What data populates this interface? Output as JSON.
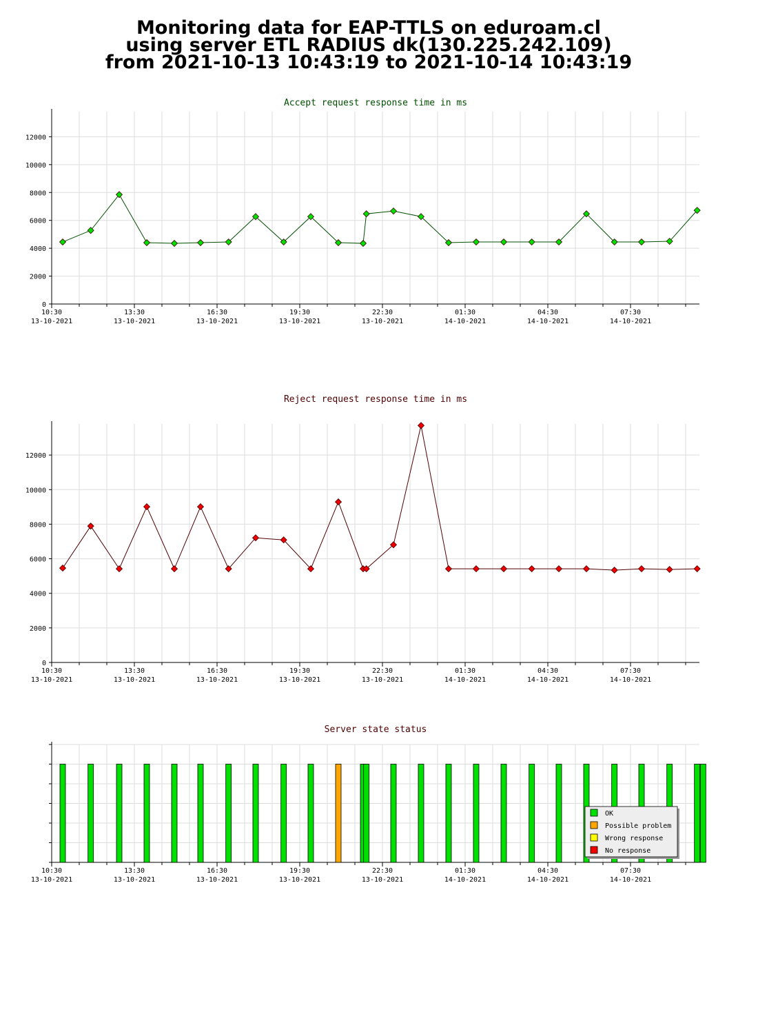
{
  "title": [
    "Monitoring data for EAP-TTLS on eduroam.cl",
    "using server ETL RADIUS dk(130.225.242.109)",
    "from 2021-10-13 10:43:19 to 2021-10-14 10:43:19"
  ],
  "chart_data": [
    {
      "type": "line",
      "title": "Accept request response time in ms",
      "title_color": "#005000",
      "x": [
        "2021-10-13T10:54",
        "2021-10-13T11:55",
        "2021-10-13T12:57",
        "2021-10-13T13:57",
        "2021-10-13T14:57",
        "2021-10-13T15:54",
        "2021-10-13T16:55",
        "2021-10-13T17:54",
        "2021-10-13T18:55",
        "2021-10-13T19:54",
        "2021-10-13T20:54",
        "2021-10-13T21:48",
        "2021-10-13T21:55",
        "2021-10-13T22:54",
        "2021-10-13T23:54",
        "2021-10-14T00:54",
        "2021-10-14T01:54",
        "2021-10-14T02:54",
        "2021-10-14T03:55",
        "2021-10-14T04:54",
        "2021-10-14T05:54",
        "2021-10-14T06:55",
        "2021-10-14T07:54",
        "2021-10-14T08:55",
        "2021-10-14T09:55"
      ],
      "series": [
        {
          "name": "Accept",
          "color": "#005000",
          "marker_color": "#00e000",
          "values": [
            4450,
            5280,
            7850,
            4400,
            4350,
            4400,
            4450,
            6270,
            4450,
            6270,
            4400,
            4350,
            6470,
            6670,
            6270,
            4400,
            4450,
            4450,
            4450,
            4450,
            6470,
            4450,
            4450,
            4500,
            6720
          ]
        }
      ],
      "xlim": [
        "2021-10-13T10:30",
        "2021-10-14T10:00"
      ],
      "xticks": [
        {
          "value": "2021-10-13T10:30",
          "label": "10:30\n13-10-2021"
        },
        {
          "value": "2021-10-13T13:30",
          "label": "13:30\n13-10-2021"
        },
        {
          "value": "2021-10-13T16:30",
          "label": "16:30\n13-10-2021"
        },
        {
          "value": "2021-10-13T19:30",
          "label": "19:30\n13-10-2021"
        },
        {
          "value": "2021-10-13T22:30",
          "label": "22:30\n13-10-2021"
        },
        {
          "value": "2021-10-14T01:30",
          "label": "01:30\n14-10-2021"
        },
        {
          "value": "2021-10-14T04:30",
          "label": "04:30\n14-10-2021"
        },
        {
          "value": "2021-10-14T07:30",
          "label": "07:30\n14-10-2021"
        }
      ],
      "xminorticks": [
        "2021-10-13T11:30",
        "2021-10-13T12:30",
        "2021-10-13T14:30",
        "2021-10-13T15:30",
        "2021-10-13T17:30",
        "2021-10-13T18:30",
        "2021-10-13T20:30",
        "2021-10-13T21:30",
        "2021-10-13T23:30",
        "2021-10-14T00:30",
        "2021-10-14T02:30",
        "2021-10-14T03:30",
        "2021-10-14T05:30",
        "2021-10-14T06:30",
        "2021-10-14T08:30",
        "2021-10-14T09:30"
      ],
      "ylim": [
        0,
        13800
      ],
      "yticks": [
        0,
        2000,
        4000,
        6000,
        8000,
        10000,
        12000
      ],
      "grid": true
    },
    {
      "type": "line",
      "title": "Reject request response time in ms",
      "title_color": "#500000",
      "x": [
        "2021-10-13T10:54",
        "2021-10-13T11:55",
        "2021-10-13T12:57",
        "2021-10-13T13:57",
        "2021-10-13T14:57",
        "2021-10-13T15:54",
        "2021-10-13T16:55",
        "2021-10-13T17:54",
        "2021-10-13T18:55",
        "2021-10-13T19:54",
        "2021-10-13T20:54",
        "2021-10-13T21:48",
        "2021-10-13T21:55",
        "2021-10-13T22:54",
        "2021-10-13T23:54",
        "2021-10-14T00:54",
        "2021-10-14T01:54",
        "2021-10-14T02:54",
        "2021-10-14T03:55",
        "2021-10-14T04:54",
        "2021-10-14T05:54",
        "2021-10-14T06:55",
        "2021-10-14T07:54",
        "2021-10-14T08:55",
        "2021-10-14T09:55"
      ],
      "series": [
        {
          "name": "Reject",
          "color": "#500000",
          "marker_color": "#ee0000",
          "values": [
            5460,
            7890,
            5420,
            9010,
            5420,
            9010,
            5420,
            7210,
            7090,
            5420,
            9290,
            5420,
            5420,
            6810,
            13710,
            5420,
            5420,
            5420,
            5420,
            5420,
            5420,
            5340,
            5420,
            5380,
            5420
          ]
        }
      ],
      "xlim": [
        "2021-10-13T10:30",
        "2021-10-14T10:00"
      ],
      "xticks": [
        {
          "value": "2021-10-13T10:30",
          "label": "10:30\n13-10-2021"
        },
        {
          "value": "2021-10-13T13:30",
          "label": "13:30\n13-10-2021"
        },
        {
          "value": "2021-10-13T16:30",
          "label": "16:30\n13-10-2021"
        },
        {
          "value": "2021-10-13T19:30",
          "label": "19:30\n13-10-2021"
        },
        {
          "value": "2021-10-13T22:30",
          "label": "22:30\n13-10-2021"
        },
        {
          "value": "2021-10-14T01:30",
          "label": "01:30\n14-10-2021"
        },
        {
          "value": "2021-10-14T04:30",
          "label": "04:30\n14-10-2021"
        },
        {
          "value": "2021-10-14T07:30",
          "label": "07:30\n14-10-2021"
        }
      ],
      "xminorticks": [
        "2021-10-13T11:30",
        "2021-10-13T12:30",
        "2021-10-13T14:30",
        "2021-10-13T15:30",
        "2021-10-13T17:30",
        "2021-10-13T18:30",
        "2021-10-13T20:30",
        "2021-10-13T21:30",
        "2021-10-13T23:30",
        "2021-10-14T00:30",
        "2021-10-14T02:30",
        "2021-10-14T03:30",
        "2021-10-14T05:30",
        "2021-10-14T06:30",
        "2021-10-14T08:30",
        "2021-10-14T09:30"
      ],
      "ylim": [
        0,
        13800
      ],
      "yticks": [
        0,
        2000,
        4000,
        6000,
        8000,
        10000,
        12000
      ],
      "grid": true
    },
    {
      "type": "status",
      "title": "Server state status",
      "title_color": "#500000",
      "x": [
        "2021-10-13T10:54",
        "2021-10-13T11:55",
        "2021-10-13T12:57",
        "2021-10-13T13:57",
        "2021-10-13T14:57",
        "2021-10-13T15:54",
        "2021-10-13T16:55",
        "2021-10-13T17:54",
        "2021-10-13T18:55",
        "2021-10-13T19:54",
        "2021-10-13T20:54",
        "2021-10-13T21:48",
        "2021-10-13T21:55",
        "2021-10-13T22:54",
        "2021-10-13T23:54",
        "2021-10-14T00:54",
        "2021-10-14T01:54",
        "2021-10-14T02:54",
        "2021-10-14T03:55",
        "2021-10-14T04:54",
        "2021-10-14T05:54",
        "2021-10-14T06:55",
        "2021-10-14T07:54",
        "2021-10-14T08:55",
        "2021-10-14T09:55",
        "2021-10-14T10:08"
      ],
      "states": [
        "OK",
        "OK",
        "OK",
        "OK",
        "OK",
        "OK",
        "OK",
        "OK",
        "OK",
        "OK",
        "Possible problem",
        "OK",
        "OK",
        "OK",
        "OK",
        "OK",
        "OK",
        "OK",
        "OK",
        "OK",
        "OK",
        "OK",
        "OK",
        "OK",
        "OK",
        "OK"
      ],
      "series": [
        {
          "name": "OK",
          "color": "#00e000"
        },
        {
          "name": "Possible problem",
          "color": "#ffa500"
        },
        {
          "name": "Wrong response",
          "color": "#ffff00"
        },
        {
          "name": "No response",
          "color": "#ee0000"
        }
      ],
      "legend": "lower right",
      "xlim": [
        "2021-10-13T10:30",
        "2021-10-14T10:00"
      ],
      "xticks": [
        {
          "value": "2021-10-13T10:30",
          "label": "10:30\n13-10-2021"
        },
        {
          "value": "2021-10-13T13:30",
          "label": "13:30\n13-10-2021"
        },
        {
          "value": "2021-10-13T16:30",
          "label": "16:30\n13-10-2021"
        },
        {
          "value": "2021-10-13T19:30",
          "label": "19:30\n13-10-2021"
        },
        {
          "value": "2021-10-13T22:30",
          "label": "22:30\n13-10-2021"
        },
        {
          "value": "2021-10-14T01:30",
          "label": "01:30\n14-10-2021"
        },
        {
          "value": "2021-10-14T04:30",
          "label": "04:30\n14-10-2021"
        },
        {
          "value": "2021-10-14T07:30",
          "label": "07:30\n14-10-2021"
        }
      ],
      "xminorticks": [
        "2021-10-13T11:30",
        "2021-10-13T12:30",
        "2021-10-13T14:30",
        "2021-10-13T15:30",
        "2021-10-13T17:30",
        "2021-10-13T18:30",
        "2021-10-13T20:30",
        "2021-10-13T21:30",
        "2021-10-13T23:30",
        "2021-10-14T00:30",
        "2021-10-14T02:30",
        "2021-10-14T03:30",
        "2021-10-14T05:30",
        "2021-10-14T06:30",
        "2021-10-14T08:30",
        "2021-10-14T09:30"
      ],
      "grid": true
    }
  ]
}
